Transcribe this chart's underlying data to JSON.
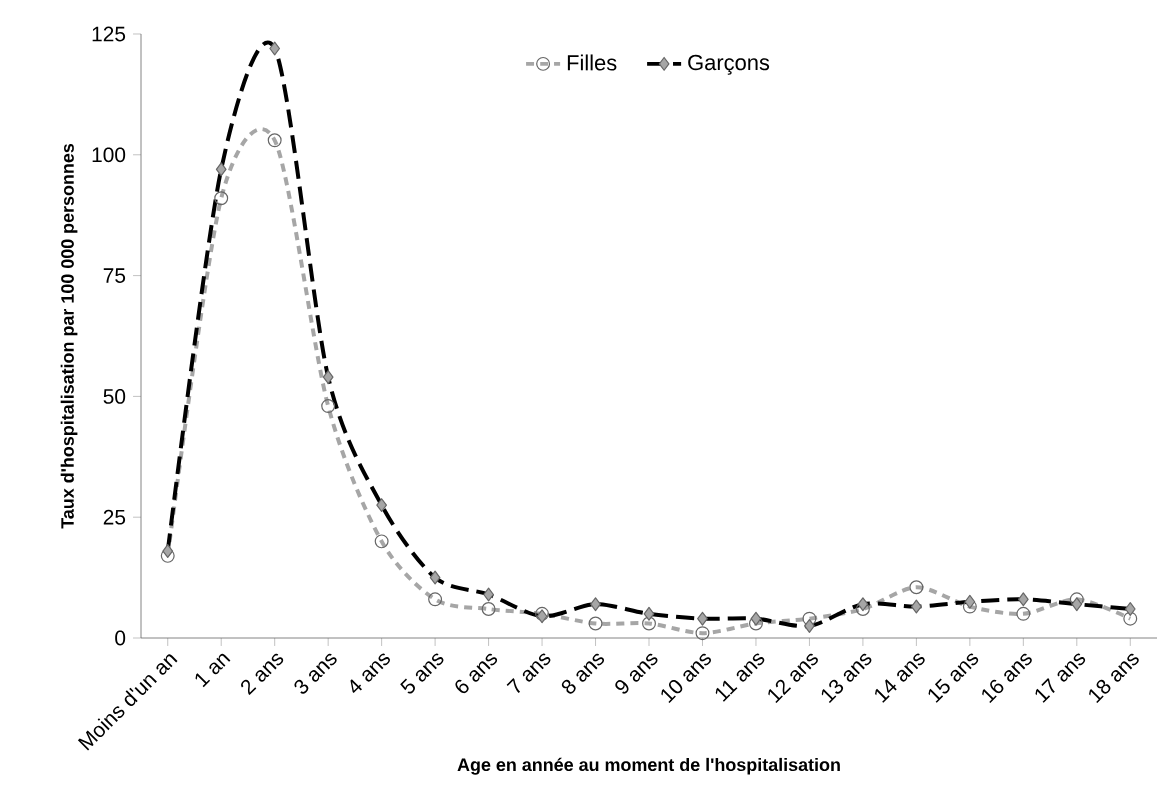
{
  "chart_data": {
    "type": "line",
    "xlabel": "Age en année au moment de l'hospitalisation",
    "ylabel": "Taux d'hospitalisation par 100 000 personnes",
    "categories": [
      "Moins d'un an",
      "1 an",
      "2 ans",
      "3 ans",
      "4 ans",
      "5 ans",
      "6 ans",
      "7 ans",
      "8 ans",
      "9 ans",
      "10 ans",
      "11 ans",
      "12 ans",
      "13 ans",
      "14 ans",
      "15 ans",
      "16 ans",
      "17 ans",
      "18 ans"
    ],
    "series": [
      {
        "name": "Filles",
        "color": "#a6a6a6",
        "marker": "circle",
        "line_style": "dotted",
        "values": [
          17,
          91,
          103,
          48,
          20,
          8,
          6,
          5,
          3,
          3,
          1,
          3,
          4,
          6,
          10.5,
          6.5,
          5,
          8,
          4
        ]
      },
      {
        "name": "Garçons",
        "color": "#000000",
        "marker": "diamond",
        "line_style": "dashed",
        "values": [
          18,
          97,
          122,
          54,
          27.5,
          12.5,
          9,
          4.5,
          7,
          5,
          4,
          4,
          2.5,
          7,
          6.5,
          7.5,
          8,
          7,
          6
        ]
      }
    ],
    "ylim": [
      0,
      125
    ],
    "yticks": [
      0,
      25,
      50,
      75,
      100,
      125
    ],
    "grid": false,
    "legend": "top"
  }
}
